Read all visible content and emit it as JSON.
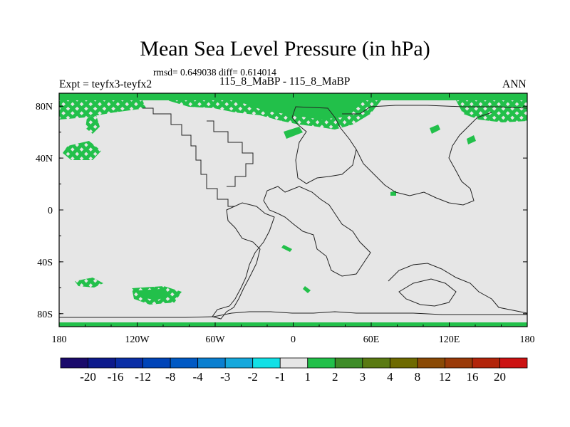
{
  "chart_data": {
    "type": "heatmap",
    "title": "Mean Sea Level Pressure (in hPa)",
    "stats_text": "rmsd= 0.649038 diff= 0.614014",
    "left_label": "Expt = teyfx3-teyfx2",
    "center_label": "115_8_MaBP - 115_8_MaBP",
    "right_label": "ANN",
    "x_ticks": [
      "180",
      "120W",
      "60W",
      "0",
      "60E",
      "120E",
      "180"
    ],
    "y_ticks": [
      "80N",
      "40N",
      "0",
      "40S",
      "80S"
    ],
    "xlim": [
      -180,
      180
    ],
    "ylim": [
      -90,
      90
    ],
    "colorbar_labels": [
      "-20",
      "-16",
      "-12",
      "-8",
      "-4",
      "-3",
      "-2",
      "-1",
      "1",
      "2",
      "3",
      "4",
      "8",
      "12",
      "16",
      "20"
    ],
    "colorbar_colors": [
      "#1a0a6b",
      "#0d1a8c",
      "#0a2ea6",
      "#0044b8",
      "#0059c4",
      "#0a7fd0",
      "#15a8dc",
      "#12e0e6",
      "#e6e6e6",
      "#22c04a",
      "#3e8c28",
      "#5a7a12",
      "#6e6a00",
      "#8a4a05",
      "#9a3a08",
      "#b2240a",
      "#cc1212"
    ],
    "background_value_color": "#e6e6e6",
    "positive_anomaly_color": "#22c04a"
  }
}
